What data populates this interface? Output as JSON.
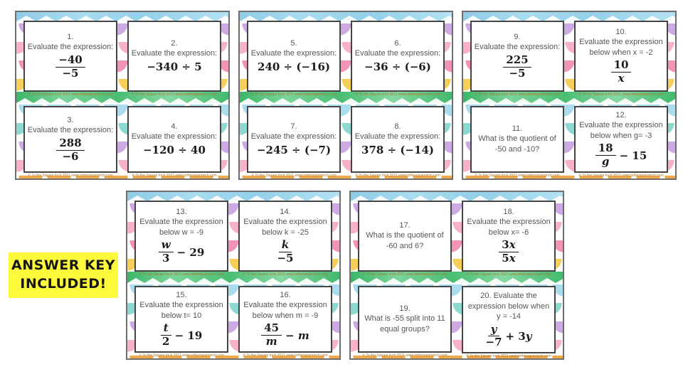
{
  "badge": {
    "line1": "ANSWER KEY",
    "line2": "INCLUDED!",
    "bg": "#fdfa3c",
    "text_color": "#161616"
  },
  "card_footer": "© To the Square Inch  2021 www.tothesquareinch.com",
  "colors": {
    "green_strip": "#3cb668",
    "blue_strip": "#8fcce6",
    "card_border": "#454545",
    "prompt_text": "#565656",
    "math_text": "#1c1c1c",
    "scallops": [
      "#cdaae4",
      "#f7b1ca",
      "#f393b8",
      "#f6cf5a",
      "#aadcee",
      "#8ed8d2",
      "#f0a94a"
    ]
  },
  "panels": [
    {
      "cards": [
        {
          "id": 1,
          "number": "1.",
          "lines": [
            "Evaluate the expression:"
          ],
          "math": {
            "layout": "fraction",
            "num": "−40",
            "den": "−5",
            "post": ""
          }
        },
        {
          "id": 2,
          "number": "2.",
          "lines": [
            "Evaluate the expression:"
          ],
          "math": {
            "layout": "inline",
            "text": "−340 ÷ 5"
          }
        },
        {
          "id": 3,
          "number": "3.",
          "lines": [
            "Evaluate the expression:"
          ],
          "math": {
            "layout": "fraction",
            "num": "288",
            "den": "−6",
            "post": ""
          }
        },
        {
          "id": 4,
          "number": "4.",
          "lines": [
            "Evaluate the expression:"
          ],
          "math": {
            "layout": "inline",
            "text": "−120 ÷ 40"
          }
        }
      ]
    },
    {
      "cards": [
        {
          "id": 5,
          "number": "5.",
          "lines": [
            "Evaluate the expression:"
          ],
          "math": {
            "layout": "inline",
            "text": "240 ÷ (−16)"
          }
        },
        {
          "id": 6,
          "number": "6.",
          "lines": [
            "Evaluate the expression:"
          ],
          "math": {
            "layout": "inline",
            "text": "−36 ÷ (−6)"
          }
        },
        {
          "id": 7,
          "number": "7.",
          "lines": [
            "Evaluate the expression:"
          ],
          "math": {
            "layout": "inline",
            "text": "−245 ÷ (−7)"
          }
        },
        {
          "id": 8,
          "number": "8.",
          "lines": [
            "Evaluate the expression:"
          ],
          "math": {
            "layout": "inline",
            "text": "378 ÷ (−14)"
          }
        }
      ]
    },
    {
      "cards": [
        {
          "id": 9,
          "number": "9.",
          "lines": [
            "Evaluate the expression:"
          ],
          "math": {
            "layout": "fraction",
            "num": "225",
            "den": "−5",
            "post": ""
          }
        },
        {
          "id": 10,
          "number": "10.",
          "lines": [
            "Evaluate the expression",
            "below when x = -2"
          ],
          "math": {
            "layout": "fraction",
            "num": "10",
            "den": "x",
            "post": ""
          }
        },
        {
          "id": 11,
          "number": "11.",
          "lines": [
            "What is the quotient of",
            "-50 and -10?"
          ],
          "math": null
        },
        {
          "id": 12,
          "number": "12.",
          "lines": [
            "Evaluate the expression",
            "below when g= -3"
          ],
          "math": {
            "layout": "fraction",
            "num": "18",
            "den": "g",
            "post": "− 15"
          }
        }
      ]
    },
    {
      "cards": [
        {
          "id": 13,
          "number": "13.",
          "lines": [
            "Evaluate the expression",
            "below w = -9"
          ],
          "math": {
            "layout": "fraction",
            "num": "w",
            "den": "3",
            "post": "− 29"
          }
        },
        {
          "id": 14,
          "number": "14.",
          "lines": [
            "Evaluate the expression",
            "below k = -25"
          ],
          "math": {
            "layout": "fraction",
            "num": "k",
            "den": "−5",
            "post": ""
          }
        },
        {
          "id": 15,
          "number": "15.",
          "lines": [
            "Evaluate the expression",
            "below t= 10"
          ],
          "math": {
            "layout": "fraction",
            "num": "t",
            "den": "2",
            "post": "− 19"
          }
        },
        {
          "id": 16,
          "number": "16.",
          "lines": [
            "Evaluate the expression",
            "below when m = -9"
          ],
          "math": {
            "layout": "fraction",
            "num": "45",
            "den": "m",
            "post": "− m"
          }
        }
      ]
    },
    {
      "cards": [
        {
          "id": 17,
          "number": "17.",
          "lines": [
            "What is the quotient of",
            "-60 and 6?"
          ],
          "math": null
        },
        {
          "id": 18,
          "number": "18.",
          "lines": [
            "Evaluate the expression",
            "below x= -6"
          ],
          "math": {
            "layout": "fraction",
            "num": "3x",
            "den": "5x",
            "post": ""
          }
        },
        {
          "id": 19,
          "number": "19.",
          "lines": [
            "What is -55 split into 11",
            "equal groups?"
          ],
          "math": null
        },
        {
          "id": 20,
          "number": "",
          "lines": [
            "20.  Evaluate the",
            "expression below when",
            "y = -14"
          ],
          "math": {
            "layout": "fraction",
            "num": "y",
            "den": "−7",
            "post": "+ 3y"
          }
        }
      ]
    }
  ]
}
